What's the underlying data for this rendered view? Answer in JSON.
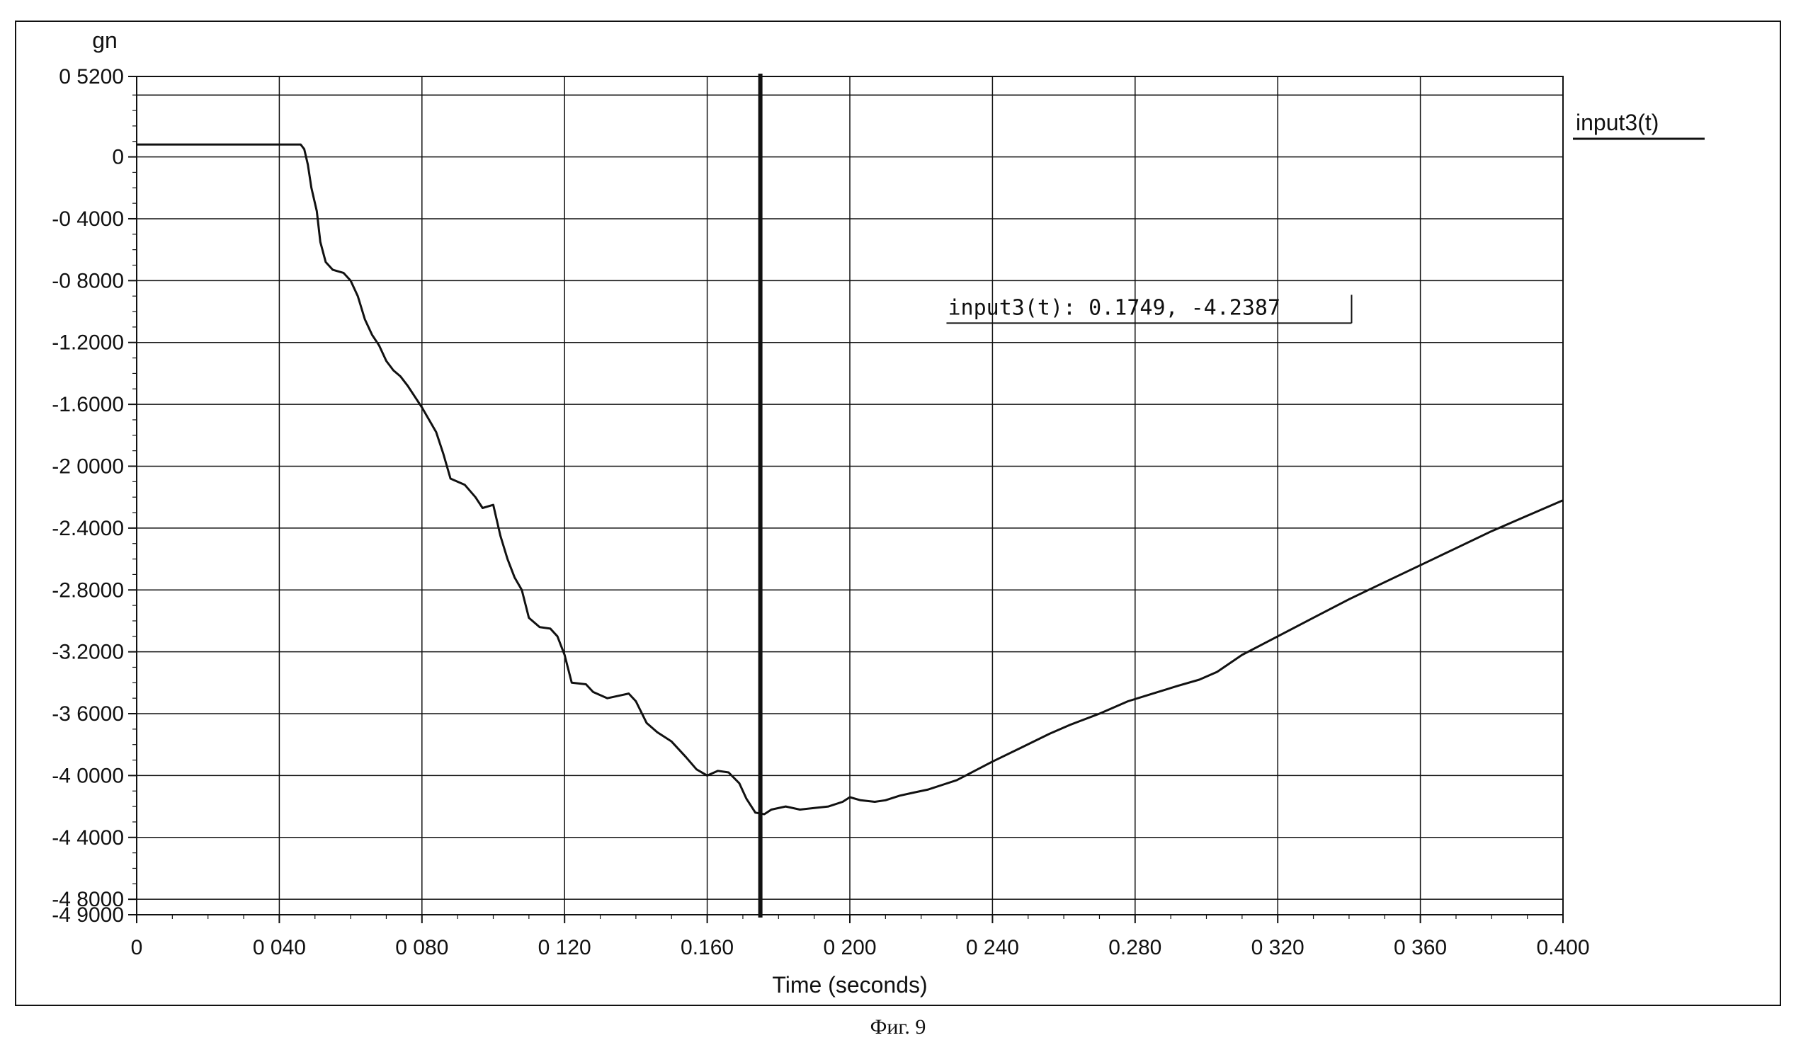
{
  "figure": {
    "caption": "Фиг. 9"
  },
  "chart_data": {
    "type": "line",
    "title": "",
    "xlabel": "Time (seconds)",
    "ylabel": "gn",
    "xlim": [
      0,
      0.4
    ],
    "ylim": [
      -4.9,
      0.52
    ],
    "x_ticks": [
      0,
      0.04,
      0.08,
      0.12,
      0.16,
      0.2,
      0.24,
      0.28,
      0.32,
      0.36,
      0.4
    ],
    "x_tick_labels": [
      "0",
      "0 040",
      "0 080",
      "0 120",
      "0.160",
      "0 200",
      "0 240",
      "0.280",
      "0 320",
      "0 360",
      "0.400"
    ],
    "y_ticks": [
      0.52,
      0,
      -0.4,
      -0.8,
      -1.2,
      -1.6,
      -2.0,
      -2.4,
      -2.8,
      -3.2,
      -3.6,
      -4.0,
      -4.4,
      -4.8,
      -4.9
    ],
    "y_tick_labels": [
      "0 5200",
      "0",
      "-0 4000",
      "-0 8000",
      "-1.2000",
      "-1.6000",
      "-2 0000",
      "-2.4000",
      "-2.8000",
      "-3.2000",
      "-3 6000",
      "-4 0000",
      "-4 4000",
      "-4 8000",
      "-4 9000"
    ],
    "grid": true,
    "legend_position": "top-right",
    "series": [
      {
        "name": "input3(t)",
        "color": "#111111",
        "points": [
          [
            0.0,
            0.08
          ],
          [
            0.046,
            0.08
          ],
          [
            0.047,
            0.05
          ],
          [
            0.048,
            -0.05
          ],
          [
            0.049,
            -0.2
          ],
          [
            0.0505,
            -0.35
          ],
          [
            0.0515,
            -0.55
          ],
          [
            0.053,
            -0.68
          ],
          [
            0.055,
            -0.73
          ],
          [
            0.058,
            -0.75
          ],
          [
            0.06,
            -0.8
          ],
          [
            0.062,
            -0.9
          ],
          [
            0.064,
            -1.05
          ],
          [
            0.066,
            -1.15
          ],
          [
            0.068,
            -1.22
          ],
          [
            0.07,
            -1.32
          ],
          [
            0.072,
            -1.38
          ],
          [
            0.074,
            -1.42
          ],
          [
            0.076,
            -1.48
          ],
          [
            0.078,
            -1.55
          ],
          [
            0.08,
            -1.62
          ],
          [
            0.082,
            -1.7
          ],
          [
            0.084,
            -1.78
          ],
          [
            0.086,
            -1.92
          ],
          [
            0.088,
            -2.08
          ],
          [
            0.092,
            -2.12
          ],
          [
            0.095,
            -2.2
          ],
          [
            0.097,
            -2.27
          ],
          [
            0.1,
            -2.25
          ],
          [
            0.102,
            -2.45
          ],
          [
            0.104,
            -2.6
          ],
          [
            0.106,
            -2.72
          ],
          [
            0.108,
            -2.8
          ],
          [
            0.11,
            -2.98
          ],
          [
            0.113,
            -3.04
          ],
          [
            0.116,
            -3.05
          ],
          [
            0.118,
            -3.1
          ],
          [
            0.12,
            -3.22
          ],
          [
            0.122,
            -3.4
          ],
          [
            0.126,
            -3.41
          ],
          [
            0.128,
            -3.46
          ],
          [
            0.132,
            -3.5
          ],
          [
            0.136,
            -3.48
          ],
          [
            0.138,
            -3.47
          ],
          [
            0.14,
            -3.52
          ],
          [
            0.143,
            -3.66
          ],
          [
            0.146,
            -3.72
          ],
          [
            0.15,
            -3.78
          ],
          [
            0.154,
            -3.88
          ],
          [
            0.157,
            -3.96
          ],
          [
            0.16,
            -4.0
          ],
          [
            0.163,
            -3.97
          ],
          [
            0.166,
            -3.98
          ],
          [
            0.169,
            -4.05
          ],
          [
            0.171,
            -4.15
          ],
          [
            0.1735,
            -4.24
          ],
          [
            0.176,
            -4.25
          ],
          [
            0.178,
            -4.22
          ],
          [
            0.182,
            -4.2
          ],
          [
            0.186,
            -4.22
          ],
          [
            0.19,
            -4.21
          ],
          [
            0.194,
            -4.2
          ],
          [
            0.198,
            -4.17
          ],
          [
            0.2,
            -4.14
          ],
          [
            0.203,
            -4.16
          ],
          [
            0.207,
            -4.17
          ],
          [
            0.21,
            -4.16
          ],
          [
            0.214,
            -4.13
          ],
          [
            0.218,
            -4.11
          ],
          [
            0.222,
            -4.09
          ],
          [
            0.226,
            -4.06
          ],
          [
            0.23,
            -4.03
          ],
          [
            0.235,
            -3.97
          ],
          [
            0.24,
            -3.91
          ],
          [
            0.248,
            -3.82
          ],
          [
            0.256,
            -3.73
          ],
          [
            0.262,
            -3.67
          ],
          [
            0.27,
            -3.6
          ],
          [
            0.278,
            -3.52
          ],
          [
            0.285,
            -3.47
          ],
          [
            0.292,
            -3.42
          ],
          [
            0.298,
            -3.38
          ],
          [
            0.303,
            -3.33
          ],
          [
            0.31,
            -3.22
          ],
          [
            0.32,
            -3.1
          ],
          [
            0.33,
            -2.98
          ],
          [
            0.34,
            -2.86
          ],
          [
            0.35,
            -2.75
          ],
          [
            0.36,
            -2.64
          ],
          [
            0.37,
            -2.53
          ],
          [
            0.38,
            -2.42
          ],
          [
            0.39,
            -2.32
          ],
          [
            0.4,
            -2.22
          ]
        ]
      }
    ],
    "cursor": {
      "x": 0.1749,
      "label": "input3(t): 0.1749, -4.2387"
    }
  }
}
